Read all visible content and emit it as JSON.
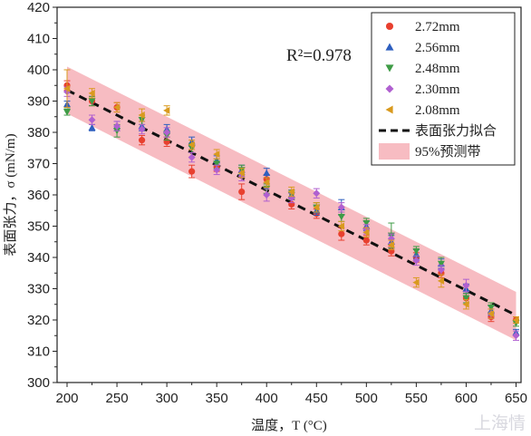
{
  "chart_data": {
    "type": "scatter",
    "xlabel": "温度，T (°C)",
    "ylabel": "表面张力，σ (mN/m)",
    "xlim": [
      190,
      655
    ],
    "ylim": [
      300,
      420
    ],
    "xticks": [
      200,
      250,
      300,
      350,
      400,
      450,
      500,
      550,
      600,
      650
    ],
    "yticks": [
      300,
      310,
      320,
      330,
      340,
      350,
      360,
      370,
      380,
      390,
      400,
      410,
      420
    ],
    "annotation": "R²=0.978",
    "legend_position": "top-right",
    "series": [
      {
        "name": "2.72mm",
        "marker": "circle",
        "color": "#e8402f",
        "points": [
          [
            200,
            395
          ],
          [
            225,
            390
          ],
          [
            250,
            388
          ],
          [
            275,
            377.5
          ],
          [
            300,
            377
          ],
          [
            325,
            367.5
          ],
          [
            350,
            369
          ],
          [
            375,
            361
          ],
          [
            400,
            365
          ],
          [
            425,
            357
          ],
          [
            450,
            354
          ],
          [
            475,
            347.5
          ],
          [
            500,
            345.5
          ],
          [
            525,
            342
          ],
          [
            550,
            340
          ],
          [
            575,
            335
          ],
          [
            600,
            327
          ],
          [
            625,
            321
          ],
          [
            650,
            320
          ]
        ],
        "errors": [
          1.5,
          1.5,
          1.5,
          1.5,
          1.5,
          2,
          1.5,
          2.5,
          1.5,
          1.5,
          1.5,
          2,
          1.5,
          1.5,
          1.5,
          1.5,
          1.5,
          1.5,
          1
        ]
      },
      {
        "name": "2.56mm",
        "marker": "triangle-up",
        "color": "#2e5fbf",
        "points": [
          [
            200,
            389
          ],
          [
            225,
            381.5
          ],
          [
            250,
            382
          ],
          [
            275,
            382
          ],
          [
            300,
            381
          ],
          [
            325,
            377
          ],
          [
            350,
            371
          ],
          [
            375,
            368
          ],
          [
            400,
            367
          ],
          [
            425,
            360
          ],
          [
            450,
            355
          ],
          [
            475,
            356
          ],
          [
            500,
            350
          ],
          [
            525,
            345
          ],
          [
            550,
            341
          ],
          [
            575,
            338
          ],
          [
            600,
            330
          ],
          [
            625,
            323
          ],
          [
            650,
            316
          ]
        ],
        "errors": [
          1,
          1,
          1.5,
          1.5,
          1.5,
          1.5,
          1.5,
          1.5,
          1.5,
          1.5,
          1.5,
          2.5,
          1.5,
          2,
          1.5,
          1.5,
          1.5,
          1.5,
          1
        ]
      },
      {
        "name": "2.48mm",
        "marker": "triangle-down",
        "color": "#3f9c46",
        "points": [
          [
            200,
            386.5
          ],
          [
            225,
            390
          ],
          [
            250,
            380.5
          ],
          [
            275,
            384
          ],
          [
            300,
            379
          ],
          [
            325,
            375
          ],
          [
            350,
            370
          ],
          [
            375,
            368
          ],
          [
            400,
            362
          ],
          [
            425,
            360
          ],
          [
            450,
            356
          ],
          [
            475,
            353
          ],
          [
            500,
            351
          ],
          [
            525,
            347
          ],
          [
            550,
            342
          ],
          [
            575,
            338
          ],
          [
            600,
            327
          ],
          [
            625,
            324
          ],
          [
            650,
            319
          ]
        ],
        "errors": [
          1,
          1.5,
          2,
          1.5,
          1.5,
          1.5,
          1.5,
          1.5,
          1.5,
          1.5,
          1.5,
          1.5,
          1.5,
          4,
          1.5,
          2,
          1.5,
          1.5,
          1
        ]
      },
      {
        "name": "2.30mm",
        "marker": "diamond",
        "color": "#b060d0",
        "points": [
          [
            200,
            393
          ],
          [
            225,
            384
          ],
          [
            250,
            382
          ],
          [
            275,
            381
          ],
          [
            300,
            380
          ],
          [
            325,
            372
          ],
          [
            350,
            368
          ],
          [
            375,
            366
          ],
          [
            400,
            360
          ],
          [
            425,
            359
          ],
          [
            450,
            360.5
          ],
          [
            475,
            356
          ],
          [
            500,
            349
          ],
          [
            525,
            346
          ],
          [
            550,
            339
          ],
          [
            575,
            336
          ],
          [
            600,
            331
          ],
          [
            625,
            322
          ],
          [
            650,
            315
          ]
        ],
        "errors": [
          1.5,
          1.5,
          1.5,
          1.5,
          1.5,
          1.5,
          1.5,
          1.5,
          2,
          1.5,
          1.5,
          1.5,
          1.5,
          1.5,
          1.5,
          1.5,
          2,
          1.5,
          1.5
        ]
      },
      {
        "name": "2.08mm",
        "marker": "triangle-left",
        "color": "#d99a1e",
        "points": [
          [
            200,
            394
          ],
          [
            225,
            392.5
          ],
          [
            250,
            388
          ],
          [
            275,
            385.5
          ],
          [
            300,
            387
          ],
          [
            325,
            376
          ],
          [
            350,
            373
          ],
          [
            375,
            367
          ],
          [
            400,
            364
          ],
          [
            425,
            361
          ],
          [
            450,
            356
          ],
          [
            475,
            350
          ],
          [
            500,
            348
          ],
          [
            525,
            344
          ],
          [
            550,
            332
          ],
          [
            575,
            332.5
          ],
          [
            600,
            325
          ],
          [
            625,
            322
          ],
          [
            650,
            320
          ]
        ],
        "errors": [
          6,
          1.5,
          1.5,
          2,
          1.5,
          1.5,
          1.5,
          1.5,
          1.5,
          1.5,
          1.5,
          1.5,
          1.5,
          1.5,
          1.5,
          2,
          1.5,
          1.5,
          1
        ]
      }
    ],
    "fit": {
      "name": "表面张力拟合",
      "x": [
        200,
        650
      ],
      "y": [
        393.5,
        321.5
      ],
      "color": "#111111",
      "style": "dashed"
    },
    "band": {
      "name": "95%预测带",
      "x": [
        200,
        650
      ],
      "upper": [
        401,
        329
      ],
      "lower": [
        386,
        313.5
      ],
      "color": "#f4a6ae"
    }
  },
  "watermark": "上海情"
}
